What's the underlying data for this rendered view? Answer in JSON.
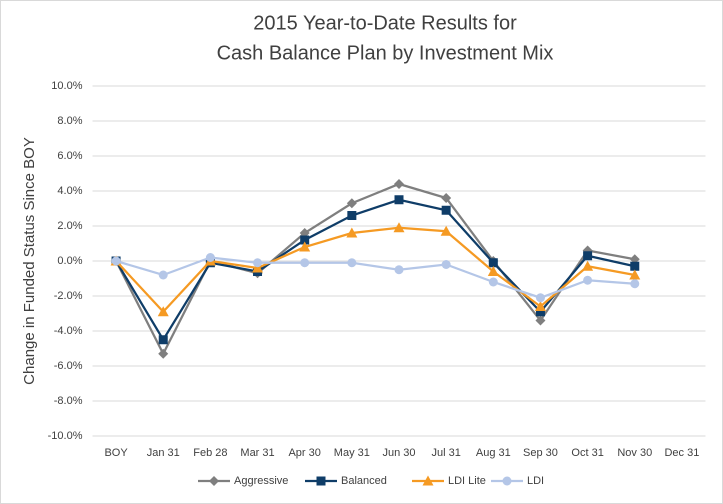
{
  "chart_data": {
    "type": "line",
    "title": [
      "2015 Year-to-Date Results for",
      "Cash Balance Plan by Investment Mix"
    ],
    "y_label": "Change in Funded Status Since BOY",
    "categories": [
      "BOY",
      "Jan 31",
      "Feb 28",
      "Mar 31",
      "Apr 30",
      "May 31",
      "Jun 30",
      "Jul 31",
      "Aug 31",
      "Sep 30",
      "Oct 31",
      "Nov 30",
      "Dec 31"
    ],
    "series": [
      {
        "name": "Aggressive",
        "color": "#7f7f7f",
        "marker": "diamond",
        "values": [
          0,
          -5.3,
          0,
          -0.7,
          1.6,
          3.3,
          4.4,
          3.6,
          0,
          -3.4,
          0.6,
          0.1,
          null
        ]
      },
      {
        "name": "Balanced",
        "color": "#0f3d68",
        "marker": "square",
        "values": [
          0,
          -4.5,
          -0.1,
          -0.6,
          1.2,
          2.6,
          3.5,
          2.9,
          -0.1,
          -2.9,
          0.3,
          -0.3,
          null
        ]
      },
      {
        "name": "LDI Lite",
        "color": "#f59a23",
        "marker": "triangle",
        "values": [
          0,
          -2.9,
          0,
          -0.4,
          0.8,
          1.6,
          1.9,
          1.7,
          -0.6,
          -2.6,
          -0.3,
          -0.8,
          null
        ]
      },
      {
        "name": "LDI",
        "color": "#b4c6e7",
        "marker": "circle",
        "values": [
          0,
          -0.8,
          0.2,
          -0.1,
          -0.1,
          -0.1,
          -0.5,
          -0.2,
          -1.2,
          -2.1,
          -1.1,
          -1.3,
          null
        ]
      }
    ],
    "ylim": [
      -10,
      10
    ],
    "yticks": [
      {
        "value": -10,
        "label": "-10.0%"
      },
      {
        "value": -8,
        "label": "-8.0%"
      },
      {
        "value": -6,
        "label": "-6.0%"
      },
      {
        "value": -4,
        "label": "-4.0%"
      },
      {
        "value": -2,
        "label": "-2.0%"
      },
      {
        "value": 0,
        "label": "0.0%"
      },
      {
        "value": 2,
        "label": "2.0%"
      },
      {
        "value": 4,
        "label": "4.0%"
      },
      {
        "value": 6,
        "label": "6.0%"
      },
      {
        "value": 8,
        "label": "8.0%"
      },
      {
        "value": 10,
        "label": "10.0%"
      }
    ],
    "grid": true,
    "legend": "bottom"
  }
}
